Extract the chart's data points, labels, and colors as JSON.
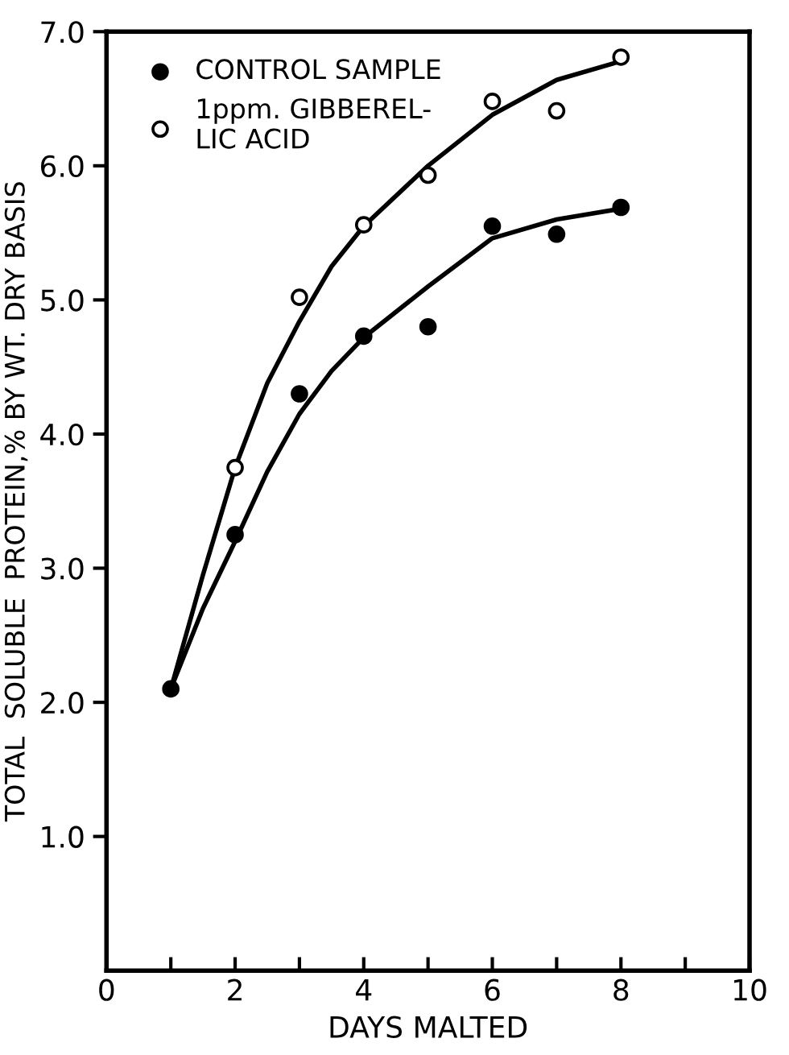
{
  "chart_data": {
    "type": "scatter",
    "xlabel": "DAYS MALTED",
    "ylabel": "TOTAL  SOLUBLE  PROTEIN,% BY WT. DRY BASIS",
    "series": [
      {
        "name": "CONTROL SAMPLE",
        "color": "#000000",
        "marker": "circle",
        "x": [
          1,
          2,
          3,
          4,
          5,
          6,
          7,
          8
        ],
        "values": [
          2.1,
          3.25,
          4.3,
          4.73,
          4.8,
          5.55,
          5.49,
          5.69
        ]
      },
      {
        "name": "1ppm. GIBBEREL-\nLIC ACID",
        "color": "#ffffff",
        "marker": "circle",
        "x": [
          2,
          3,
          4,
          5,
          6,
          7,
          8
        ],
        "values": [
          3.75,
          5.02,
          5.56,
          5.93,
          6.48,
          6.41,
          6.81
        ]
      },
      {
        "type": "line",
        "color": "#000000",
        "marker": "none",
        "line_style": "solid",
        "x": [
          1,
          1.5,
          2,
          2.5,
          3,
          3.5,
          4,
          5,
          6,
          7,
          8
        ],
        "values": [
          2.1,
          2.7,
          3.2,
          3.72,
          4.15,
          4.47,
          4.72,
          5.1,
          5.46,
          5.6,
          5.68
        ]
      },
      {
        "type": "line",
        "color": "#000000",
        "marker": "none",
        "line_style": "solid",
        "x": [
          1,
          1.5,
          2,
          2.5,
          3,
          3.5,
          4,
          5,
          6,
          7,
          8
        ],
        "values": [
          2.1,
          2.95,
          3.75,
          4.38,
          4.84,
          5.25,
          5.55,
          6.0,
          6.38,
          6.64,
          6.78
        ]
      }
    ],
    "xlim": [
      0,
      10
    ],
    "ylim": [
      0,
      7
    ],
    "xticks": [
      0,
      {
        "value": 1,
        "label": null
      },
      2,
      {
        "value": 3,
        "label": null
      },
      4,
      {
        "value": 5,
        "label": null
      },
      6,
      {
        "value": 7,
        "label": null
      },
      8,
      {
        "value": 9,
        "label": null
      },
      10
    ],
    "yticks": [
      {
        "value": 1,
        "label": "1.0"
      },
      {
        "value": 2,
        "label": "2.0"
      },
      {
        "value": 3,
        "label": "3.0"
      },
      {
        "value": 4,
        "label": "4.0"
      },
      {
        "value": 5,
        "label": "5.0"
      },
      {
        "value": 6,
        "label": "6.0"
      },
      {
        "value": 7,
        "label": "7.0"
      }
    ],
    "grid": false,
    "legend": "top left"
  }
}
